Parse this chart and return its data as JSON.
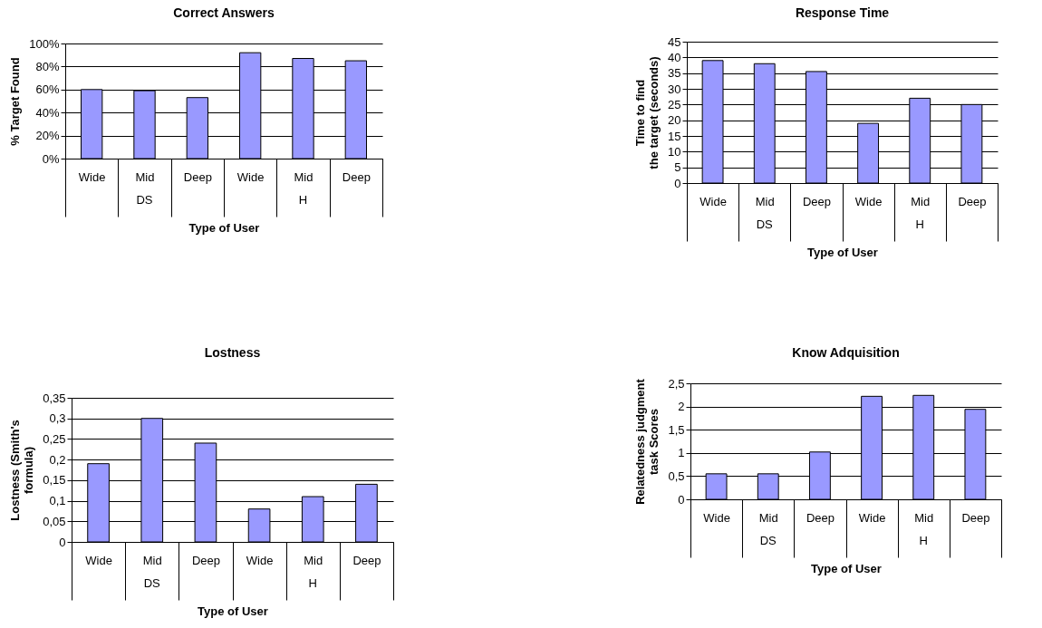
{
  "chart_data": [
    {
      "type": "bar",
      "title": "Correct Answers",
      "xlabel": "Type of User",
      "ylabel": "% Target Found",
      "categories": [
        "Wide",
        "Mid",
        "Deep",
        "Wide",
        "Mid",
        "Deep"
      ],
      "values": [
        60,
        59,
        53,
        92,
        87,
        85
      ],
      "color": "#9999ff",
      "ylim": [
        0,
        100
      ],
      "yticks": [
        {
          "value": 0,
          "label": "0%"
        },
        {
          "value": 20,
          "label": "20%"
        },
        {
          "value": 40,
          "label": "40%"
        },
        {
          "value": 60,
          "label": "60%"
        },
        {
          "value": 80,
          "label": "80%"
        },
        {
          "value": 100,
          "label": "100%"
        }
      ],
      "grid": "y",
      "annotations": [
        "DS",
        "H"
      ]
    },
    {
      "type": "bar",
      "title": "Response Time",
      "xlabel": "Type of User",
      "ylabel": "Time to find the target (seconds)",
      "categories": [
        "Wide",
        "Mid",
        "Deep",
        "Wide",
        "Mid",
        "Deep"
      ],
      "values": [
        39,
        38,
        35.5,
        19,
        27,
        25
      ],
      "color": "#9999ff",
      "ylim": [
        0,
        45
      ],
      "yticks": [
        0,
        5,
        10,
        15,
        20,
        25,
        30,
        35,
        40,
        45
      ],
      "grid": "y",
      "annotations": [
        "DS",
        "H"
      ]
    },
    {
      "type": "bar",
      "title": "Lostness",
      "xlabel": "Type of User",
      "ylabel": "Lostness (Smith's formula)",
      "categories": [
        "Wide",
        "Mid",
        "Deep",
        "Wide",
        "Mid",
        "Deep"
      ],
      "values": [
        0.19,
        0.3,
        0.24,
        0.08,
        0.11,
        0.14
      ],
      "color": "#9999ff",
      "ylim": [
        0,
        0.35
      ],
      "yticks": [
        0,
        {
          "value": 0.05,
          "label": "0,05"
        },
        {
          "value": 0.1,
          "label": "0,1"
        },
        {
          "value": 0.15,
          "label": "0,15"
        },
        {
          "value": 0.2,
          "label": "0,2"
        },
        {
          "value": 0.25,
          "label": "0,25"
        },
        {
          "value": 0.3,
          "label": "0,3"
        },
        {
          "value": 0.35,
          "label": "0,35"
        }
      ],
      "grid": "y",
      "annotations": [
        "DS",
        "H"
      ]
    },
    {
      "type": "bar",
      "title": "Know Adquisition",
      "xlabel": "Type of User",
      "ylabel": "Relatedness judgment task Scores",
      "categories": [
        "Wide",
        "Mid",
        "Deep",
        "Wide",
        "Mid",
        "Deep"
      ],
      "values": [
        0.55,
        0.55,
        1.02,
        2.22,
        2.24,
        1.94
      ],
      "color": "#9999ff",
      "ylim": [
        0,
        2.5
      ],
      "yticks": [
        0,
        {
          "value": 0.5,
          "label": "0,5"
        },
        1,
        {
          "value": 1.5,
          "label": "1,5"
        },
        2,
        {
          "value": 2.5,
          "label": "2,5"
        }
      ],
      "grid": "y",
      "annotations": [
        "DS",
        "H"
      ]
    }
  ]
}
